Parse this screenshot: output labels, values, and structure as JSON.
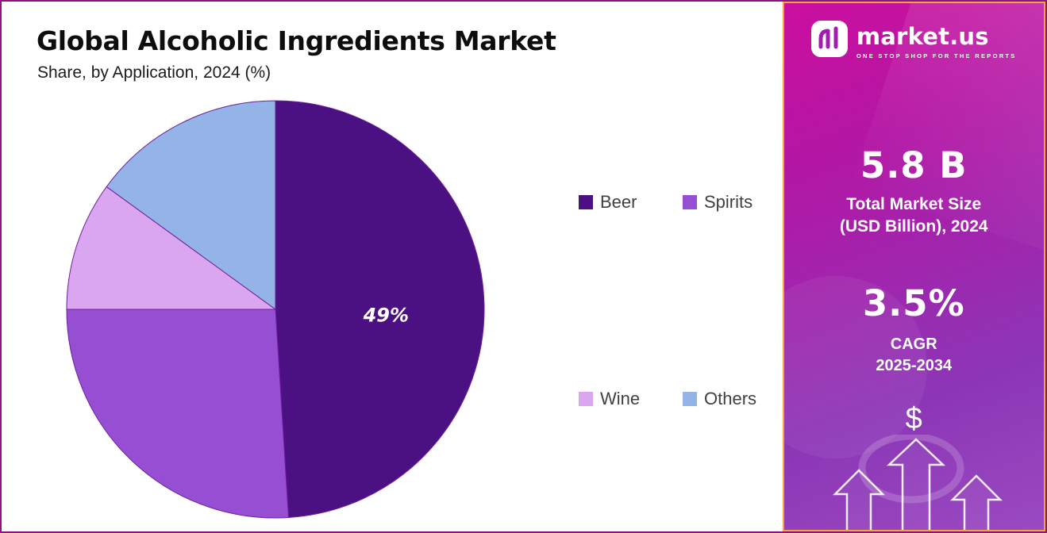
{
  "chart_data": {
    "type": "pie",
    "title": "Global Alcoholic Ingredients Market",
    "subtitle": "Share, by Application, 2024 (%)",
    "unit": "%",
    "start_angle_deg": 0,
    "direction": "clockwise",
    "legend_position": "right",
    "stroke_color": "#6d1f9e",
    "slices": [
      {
        "label": "Beer",
        "value": 49,
        "color": "#4b1182",
        "annotation": "49%"
      },
      {
        "label": "Spirits",
        "value": 26,
        "color": "#964fd2"
      },
      {
        "label": "Wine",
        "value": 10,
        "color": "#d9a6ef"
      },
      {
        "label": "Others",
        "value": 15,
        "color": "#94b3e6"
      }
    ]
  },
  "sidebar": {
    "brand": {
      "name": "market.us",
      "tagline": "ONE STOP SHOP FOR THE REPORTS"
    },
    "total_market_size": {
      "value": "5.8 B",
      "label": "Total Market Size",
      "sublabel": "(USD Billion), 2024"
    },
    "cagr": {
      "value": "3.5%",
      "label": "CAGR",
      "period": "2025-2034"
    },
    "dollar_symbol": "$",
    "accent_border_color": "#f0a63c",
    "gradient_top_color": "#cb0f9e",
    "gradient_bottom_color": "#9a4ac1"
  }
}
